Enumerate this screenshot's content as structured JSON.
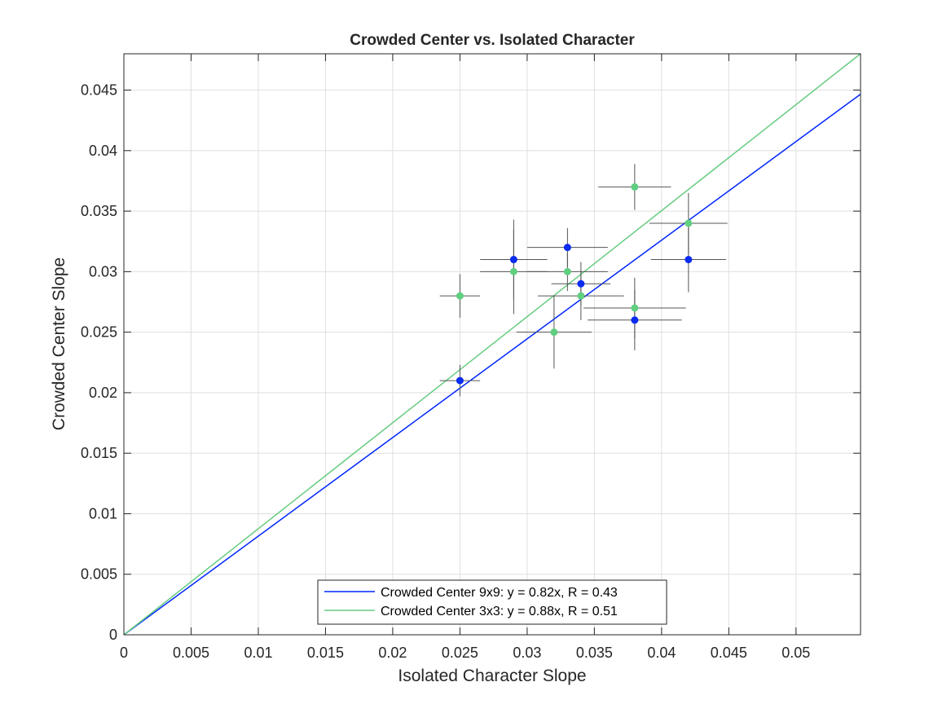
{
  "chart_data": {
    "type": "scatter",
    "title": "Crowded Center vs. Isolated Character",
    "xlabel": "Isolated Character Slope",
    "ylabel": "Crowded Center Slope",
    "xlim": [
      0,
      0.0548
    ],
    "ylim": [
      0,
      0.048
    ],
    "xticks": [
      0,
      0.005,
      0.01,
      0.015,
      0.02,
      0.025,
      0.03,
      0.035,
      0.04,
      0.045,
      0.05
    ],
    "xtick_labels": [
      "0",
      "0.005",
      "0.01",
      "0.015",
      "0.02",
      "0.025",
      "0.03",
      "0.035",
      "0.04",
      "0.045",
      "0.05"
    ],
    "yticks": [
      0,
      0.005,
      0.01,
      0.015,
      0.02,
      0.025,
      0.03,
      0.035,
      0.04,
      0.045
    ],
    "ytick_labels": [
      "0",
      "0.005",
      "0.01",
      "0.015",
      "0.02",
      "0.025",
      "0.03",
      "0.035",
      "0.04",
      "0.045"
    ],
    "grid": true,
    "legend_position": "bottom-center",
    "series": [
      {
        "name": "Crowded Center 9x9: y = 0.82x, R = 0.43",
        "color": "#0a2cf0",
        "line_color": "#0026ff",
        "fit_slope": 0.815,
        "points": [
          {
            "x": 0.025,
            "y": 0.021,
            "xerr": 0.0015,
            "yerr": 0.0013
          },
          {
            "x": 0.029,
            "y": 0.031,
            "xerr": 0.0025,
            "yerr": 0.0033
          },
          {
            "x": 0.033,
            "y": 0.032,
            "xerr": 0.003,
            "yerr": 0.0016
          },
          {
            "x": 0.034,
            "y": 0.029,
            "xerr": 0.0022,
            "yerr": 0.0018
          },
          {
            "x": 0.038,
            "y": 0.026,
            "xerr": 0.0035,
            "yerr": 0.0025
          },
          {
            "x": 0.042,
            "y": 0.031,
            "xerr": 0.0028,
            "yerr": 0.0027
          }
        ]
      },
      {
        "name": "Crowded Center 3x3: y = 0.88x, R = 0.51",
        "color": "#5fcf80",
        "line_color": "#66cc80",
        "fit_slope": 0.876,
        "points": [
          {
            "x": 0.025,
            "y": 0.028,
            "xerr": 0.0015,
            "yerr": 0.0018
          },
          {
            "x": 0.029,
            "y": 0.03,
            "xerr": 0.0025,
            "yerr": 0.0035
          },
          {
            "x": 0.032,
            "y": 0.025,
            "xerr": 0.0028,
            "yerr": 0.003
          },
          {
            "x": 0.033,
            "y": 0.03,
            "xerr": 0.003,
            "yerr": 0.0016
          },
          {
            "x": 0.034,
            "y": 0.028,
            "xerr": 0.0032,
            "yerr": 0.002
          },
          {
            "x": 0.038,
            "y": 0.037,
            "xerr": 0.0027,
            "yerr": 0.0019
          },
          {
            "x": 0.038,
            "y": 0.027,
            "xerr": 0.0038,
            "yerr": 0.0025
          },
          {
            "x": 0.042,
            "y": 0.034,
            "xerr": 0.0029,
            "yerr": 0.0025
          }
        ]
      }
    ]
  }
}
